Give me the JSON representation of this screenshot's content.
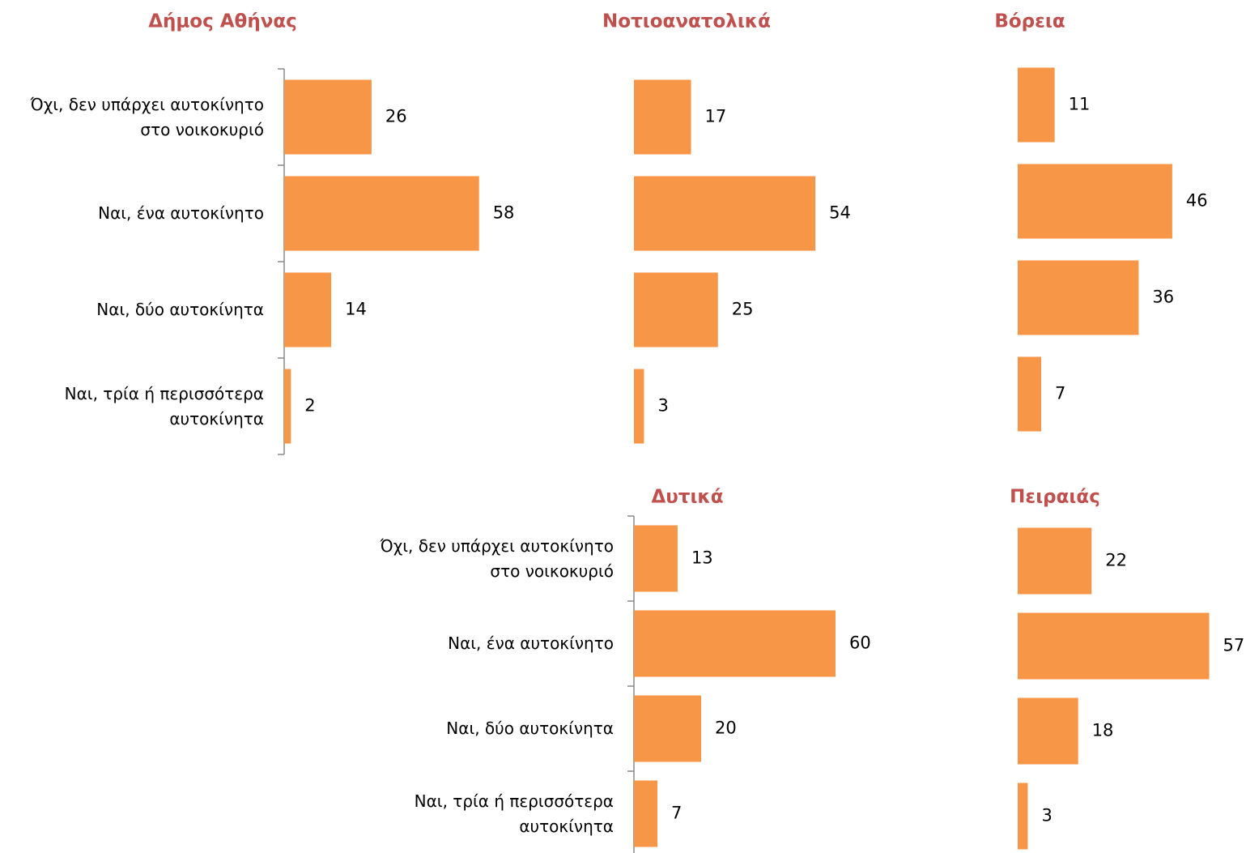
{
  "chart_data": [
    {
      "type": "bar",
      "orientation": "horizontal",
      "title": "Δήμος Αθήνας",
      "color": "#f79646",
      "categories": [
        "Όχι, δεν υπάρχει αυτοκίνητο\nστο νοικοκυριό",
        "Ναι, ένα αυτοκίνητο",
        "Ναι, δύο αυτοκίνητα",
        "Ναι, τρία ή περισσότερα\nαυτοκίνητα"
      ],
      "values": [
        26,
        58,
        14,
        2
      ]
    },
    {
      "type": "bar",
      "orientation": "horizontal",
      "title": "Νοτιοανατολικά",
      "color": "#f79646",
      "values": [
        17,
        54,
        25,
        3
      ]
    },
    {
      "type": "bar",
      "orientation": "horizontal",
      "title": "Βόρεια",
      "color": "#f79646",
      "values": [
        11,
        46,
        36,
        7
      ]
    },
    {
      "type": "bar",
      "orientation": "horizontal",
      "title": "Δυτικά",
      "color": "#f79646",
      "categories": [
        "Όχι, δεν υπάρχει αυτοκίνητο\nστο νοικοκυριό",
        "Ναι, ένα αυτοκίνητο",
        "Ναι, δύο αυτοκίνητα",
        "Ναι, τρία ή περισσότερα\nαυτοκίνητα"
      ],
      "values": [
        13,
        60,
        20,
        7
      ]
    },
    {
      "type": "bar",
      "orientation": "horizontal",
      "title": "Πειραιάς",
      "color": "#f79646",
      "values": [
        22,
        57,
        18,
        3
      ]
    }
  ]
}
